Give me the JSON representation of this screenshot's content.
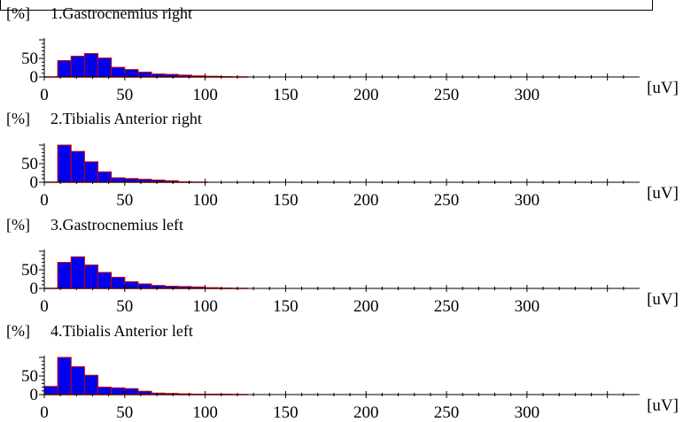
{
  "chart_data": [
    {
      "type": "bar",
      "title": "1.Gastrocnemius right",
      "ylabel": "[%]",
      "xlabel": "[uV]",
      "xlim": [
        0,
        370
      ],
      "ylim": [
        0,
        100
      ],
      "xticks": [
        0,
        50,
        100,
        150,
        200,
        250,
        300
      ],
      "yticks": [
        0,
        50
      ],
      "bin_width": 8.333,
      "bins_start": [
        8.333,
        16.667,
        25,
        33.333,
        41.667,
        50,
        58.333,
        66.667,
        75,
        83.333,
        91.667,
        100,
        108.333
      ],
      "values": [
        44,
        56,
        63,
        51,
        26,
        20,
        13,
        8,
        7,
        5,
        3,
        2,
        1
      ]
    },
    {
      "type": "bar",
      "title": "2.Tibialis Anterior right",
      "ylabel": "[%]",
      "xlabel": "[uV]",
      "xlim": [
        0,
        370
      ],
      "ylim": [
        0,
        100
      ],
      "xticks": [
        0,
        50,
        100,
        150,
        200,
        250,
        300
      ],
      "yticks": [
        0,
        50
      ],
      "bin_width": 8.333,
      "bins_start": [
        8.333,
        16.667,
        25,
        33.333,
        41.667,
        50,
        58.333,
        66.667,
        75,
        83.333
      ],
      "values": [
        100,
        83,
        55,
        28,
        12,
        10,
        8,
        6,
        4,
        1
      ]
    },
    {
      "type": "bar",
      "title": "3.Gastrocnemius left",
      "ylabel": "[%]",
      "xlabel": "[uV]",
      "xlim": [
        0,
        370
      ],
      "ylim": [
        0,
        100
      ],
      "xticks": [
        0,
        50,
        100,
        150,
        200,
        250,
        300
      ],
      "yticks": [
        0,
        50
      ],
      "bin_width": 8.333,
      "bins_start": [
        8.333,
        16.667,
        25,
        33.333,
        41.667,
        50,
        58.333,
        66.667,
        75,
        83.333,
        91.667,
        100,
        108.333
      ],
      "values": [
        70,
        85,
        63,
        43,
        30,
        18,
        12,
        8,
        6,
        5,
        4,
        2,
        1
      ]
    },
    {
      "type": "bar",
      "title": "4.Tibialis Anterior left",
      "ylabel": "[%]",
      "xlabel": "[uV]",
      "xlim": [
        0,
        370
      ],
      "ylim": [
        0,
        100
      ],
      "xticks": [
        0,
        50,
        100,
        150,
        200,
        250,
        300
      ],
      "yticks": [
        0,
        50
      ],
      "bin_width": 8.333,
      "bins_start": [
        0,
        8.333,
        16.667,
        25,
        33.333,
        41.667,
        50,
        58.333,
        66.667,
        75,
        83.333,
        91.667,
        100,
        108.333
      ],
      "values": [
        22,
        100,
        75,
        52,
        20,
        18,
        16,
        9,
        4,
        3,
        2,
        1,
        1,
        1
      ]
    }
  ],
  "colors": {
    "bar_fill": "#0000ee",
    "bar_edge": "#cc0000",
    "axis": "#000000",
    "baseline": "#ff0000"
  }
}
